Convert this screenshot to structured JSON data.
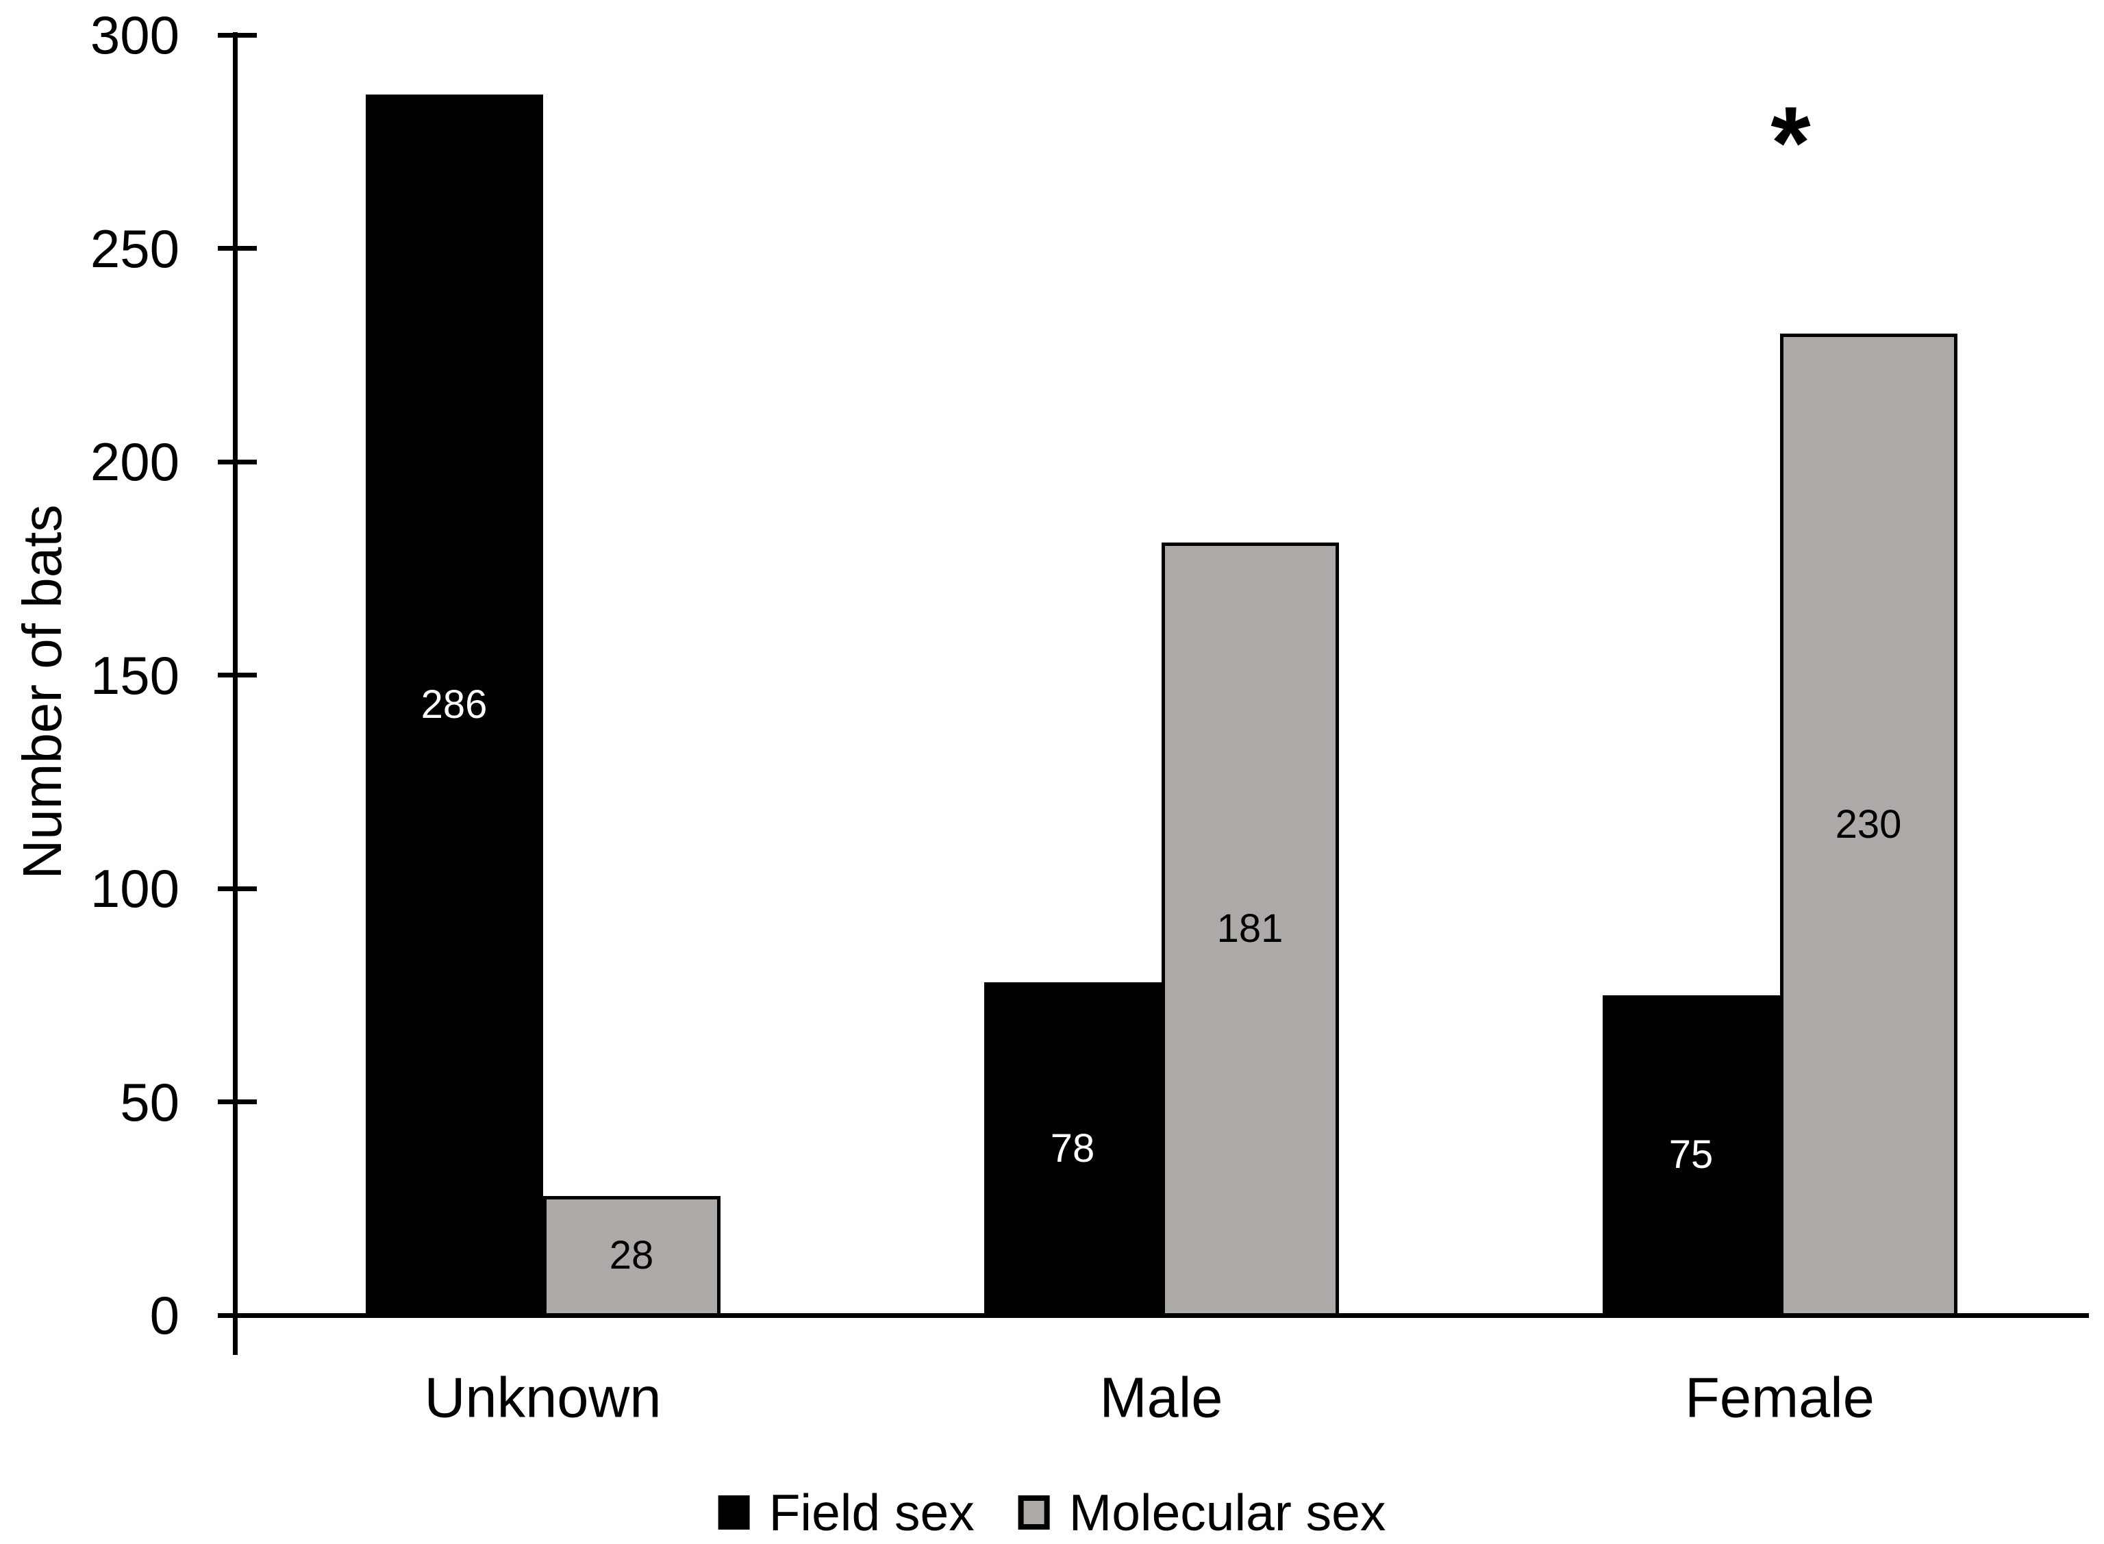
{
  "chart_data": {
    "type": "bar",
    "title": "",
    "ylabel": "Number of bats",
    "xlabel": "",
    "categories": [
      "Unknown",
      "Male",
      "Female"
    ],
    "series": [
      {
        "name": "Field sex",
        "values": [
          286,
          78,
          75
        ],
        "color": "#000000",
        "border_color": "#000000",
        "label_color": "#FFFFFF"
      },
      {
        "name": "Molecular sex",
        "values": [
          28,
          181,
          230
        ],
        "color": "#ACA9A7",
        "border_color": "#000000",
        "label_color": "#000000"
      }
    ],
    "ylim": [
      0,
      300
    ],
    "yticks": [
      0,
      50,
      100,
      150,
      200,
      250,
      300
    ],
    "grid": false,
    "legend_position": "bottom",
    "bar_label_position": "inside-center",
    "annotations": [
      {
        "text": "*",
        "category": "Female",
        "series": "Molecular sex"
      }
    ]
  }
}
